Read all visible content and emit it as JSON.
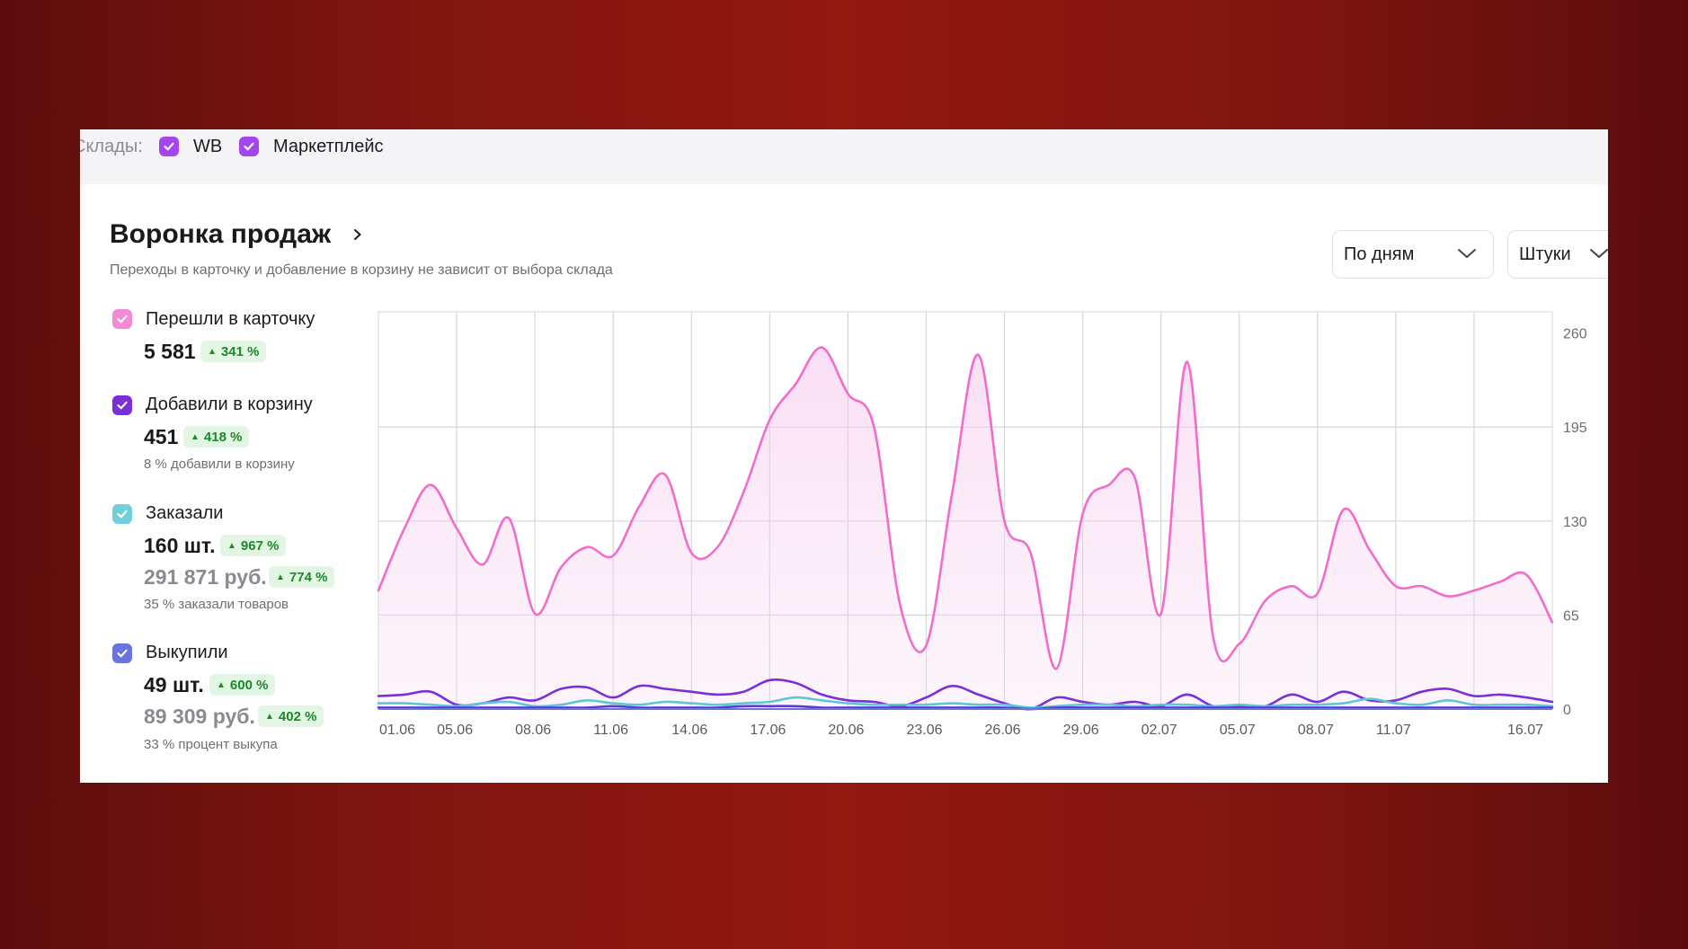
{
  "filters": {
    "label": "Склады:",
    "options": [
      {
        "label": "WB",
        "checked": true
      },
      {
        "label": "Маркетплейс",
        "checked": true
      }
    ]
  },
  "header": {
    "title": "Воронка продаж",
    "subtitle": "Переходы в карточку и добавление в корзину не зависит от выбора склада"
  },
  "controls": {
    "period": "По дням",
    "units": "Штуки"
  },
  "metrics": {
    "cards": {
      "label": "Перешли в карточку",
      "value": "5 581",
      "change": "341 %",
      "color": "#f27ad0"
    },
    "cart": {
      "label": "Добавили в корзину",
      "value": "451",
      "change": "418 %",
      "note": "8 % добавили в корзину",
      "color": "#7a2fd8"
    },
    "ordered": {
      "label": "Заказали",
      "value": "160 шт.",
      "change": "967 %",
      "value2": "291 871 руб.",
      "change2": "774 %",
      "note": "35 % заказали товаров",
      "color": "#5cc7d6"
    },
    "bought": {
      "label": "Выкупили",
      "value": "49 шт.",
      "change": "600 %",
      "value2": "89 309 руб.",
      "change2": "402 %",
      "note": "33 % процент выкупа",
      "color": "#6b73e0"
    }
  },
  "chart_data": {
    "type": "line",
    "x_ticks": [
      "01.06",
      "05.06",
      "08.06",
      "11.06",
      "14.06",
      "17.06",
      "20.06",
      "23.06",
      "26.06",
      "29.06",
      "02.07",
      "05.07",
      "08.07",
      "11.07",
      "16.07"
    ],
    "y_ticks": [
      0,
      65,
      130,
      195,
      260
    ],
    "ylim": [
      0,
      260
    ],
    "grid": true,
    "series": [
      {
        "key": "cards",
        "color": "#f26ccc",
        "fill": true,
        "values": [
          82,
          125,
          155,
          125,
          100,
          132,
          66,
          98,
          112,
          106,
          140,
          162,
          108,
          112,
          150,
          200,
          225,
          250,
          218,
          195,
          72,
          44,
          150,
          245,
          130,
          108,
          28,
          135,
          155,
          160,
          66,
          240,
          50,
          45,
          75,
          85,
          80,
          138,
          110,
          85,
          85,
          78,
          82,
          88,
          93,
          60
        ]
      },
      {
        "key": "cart",
        "color": "#7a2fd8",
        "fill": false,
        "values": [
          9,
          10,
          12,
          3,
          4,
          8,
          6,
          14,
          15,
          8,
          16,
          14,
          12,
          10,
          12,
          20,
          18,
          10,
          6,
          5,
          2,
          8,
          16,
          10,
          4,
          0,
          8,
          5,
          3,
          5,
          2,
          10,
          2,
          2,
          2,
          10,
          5,
          12,
          6,
          6,
          12,
          14,
          9,
          10,
          8,
          5
        ]
      },
      {
        "key": "ordered",
        "color": "#5cc7d6",
        "fill": false,
        "values": [
          4,
          4,
          3,
          2,
          4,
          5,
          2,
          3,
          6,
          4,
          3,
          5,
          4,
          3,
          4,
          5,
          8,
          6,
          4,
          3,
          3,
          3,
          4,
          3,
          3,
          1,
          2,
          3,
          3,
          2,
          3,
          3,
          2,
          3,
          2,
          3,
          3,
          4,
          7,
          4,
          3,
          6,
          3,
          3,
          3,
          2
        ]
      },
      {
        "key": "bought",
        "color": "#5a3cd0",
        "fill": false,
        "values": [
          1,
          1,
          1,
          1,
          1,
          1,
          1,
          1,
          1,
          2,
          1,
          1,
          1,
          1,
          2,
          2,
          2,
          1,
          1,
          1,
          1,
          1,
          1,
          1,
          1,
          0,
          1,
          1,
          1,
          1,
          1,
          1,
          1,
          1,
          1,
          1,
          1,
          1,
          1,
          1,
          1,
          1,
          1,
          1,
          1,
          1
        ]
      }
    ]
  }
}
